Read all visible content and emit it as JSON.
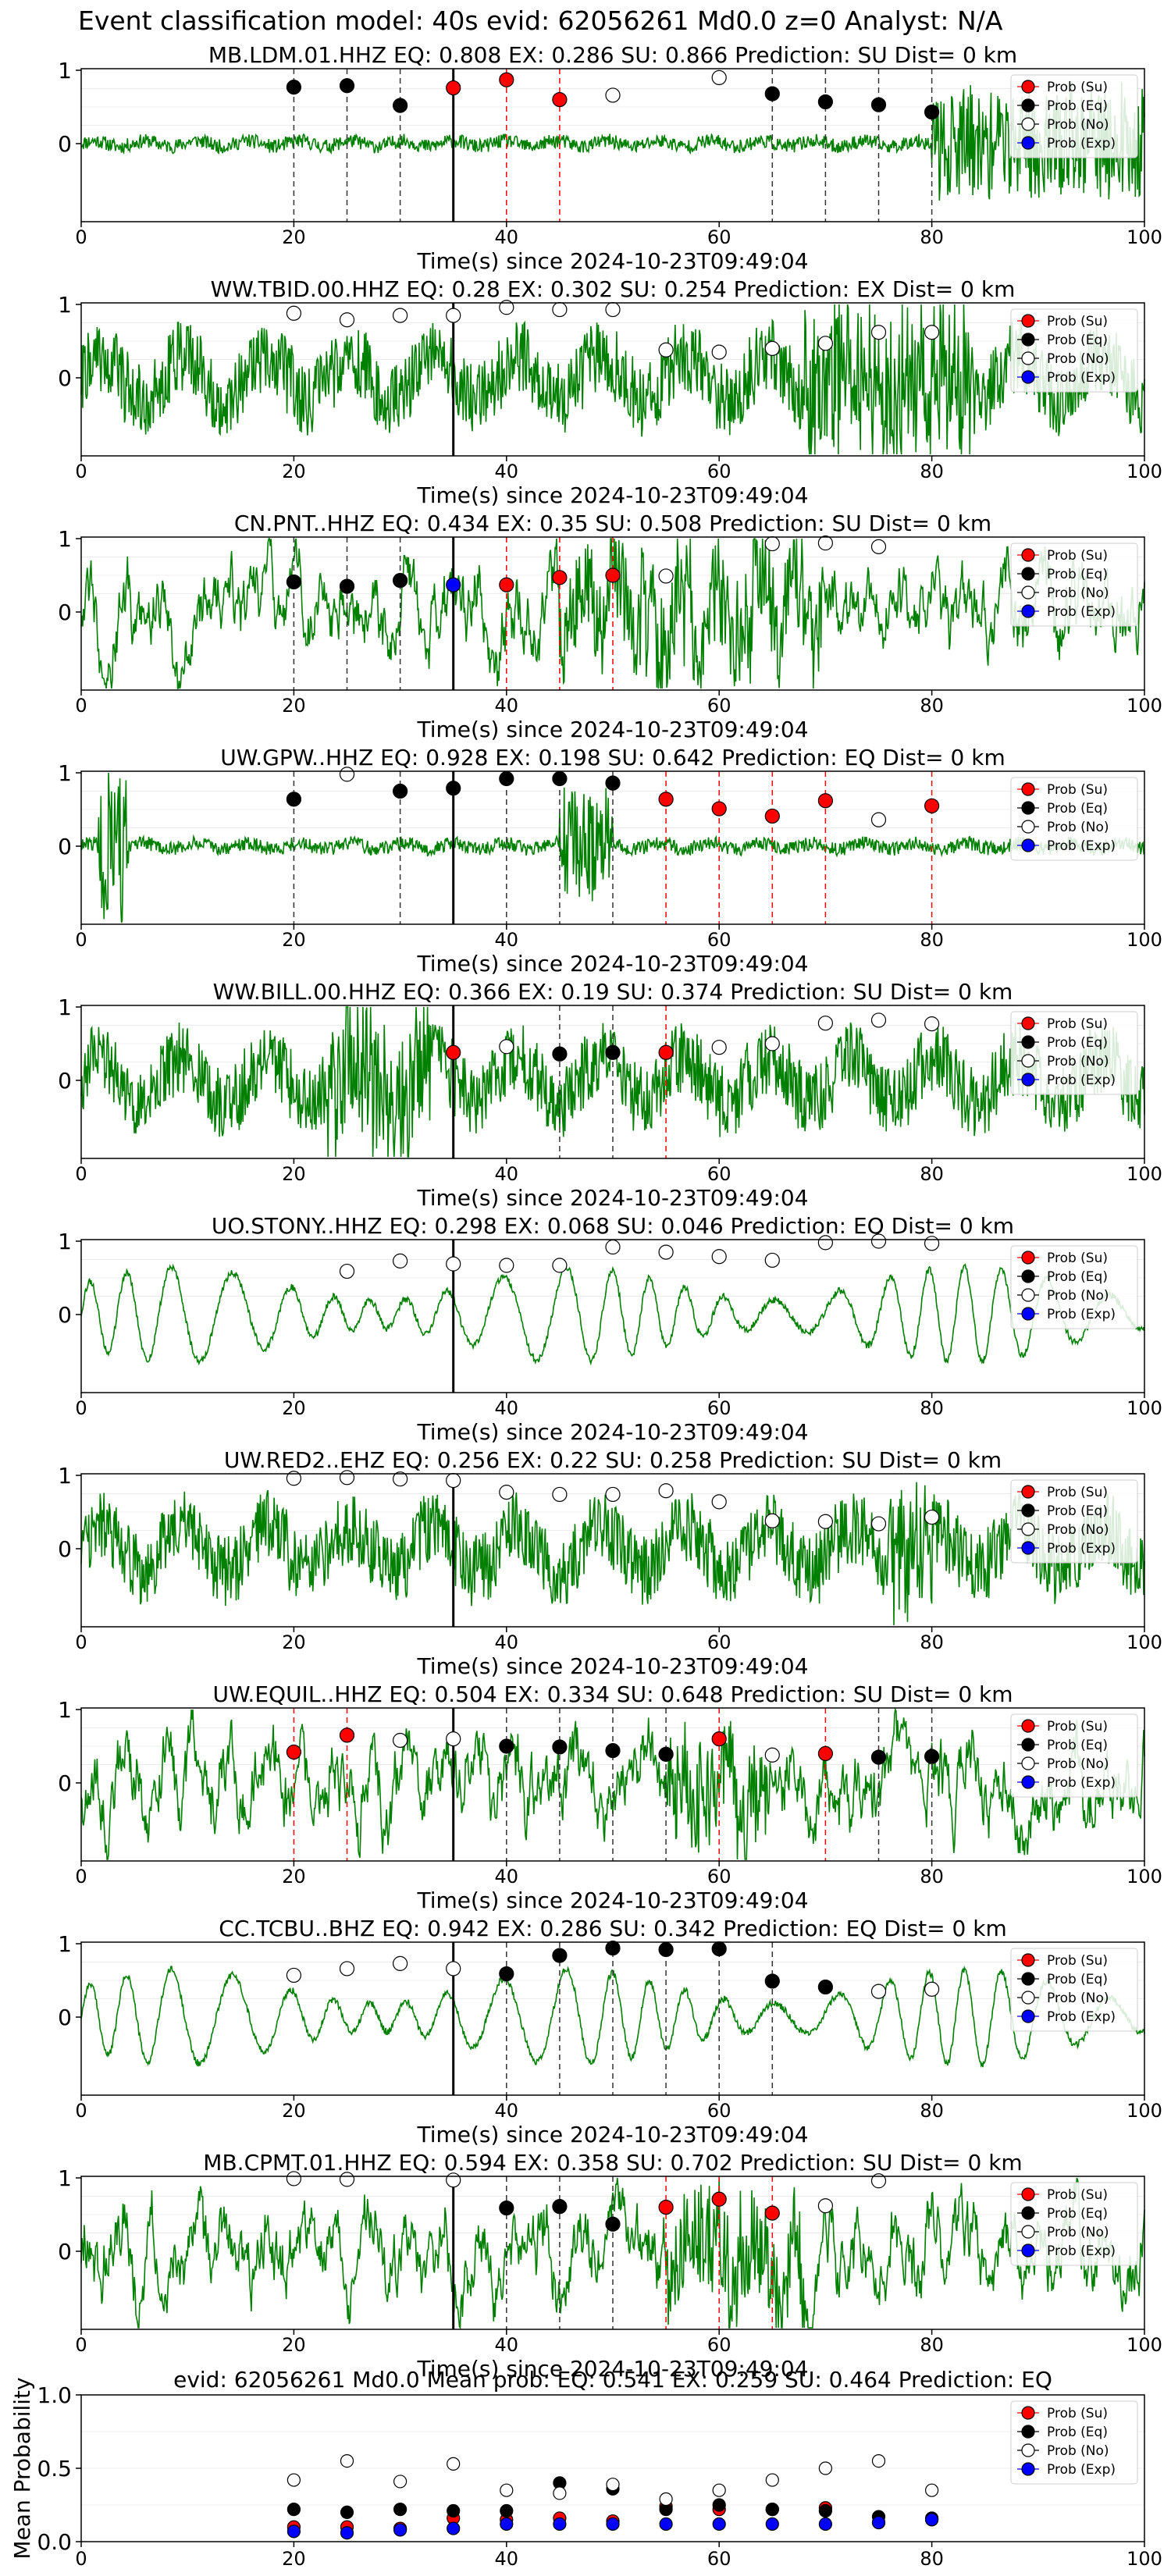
{
  "title": "Event classification model: 40s evid: 62056261 Md0.0 z=0 Analyst: N/A",
  "colors": {
    "su": "#ff0000",
    "eq": "#000000",
    "no": "#ffffff",
    "exp": "#0000ff",
    "trace": "#008000"
  },
  "legend_labels": [
    "Prob (Su)",
    "Prob (Eq)",
    "Prob (No)",
    "Prob (Exp)"
  ],
  "xlabel": "Time(s) since 2024-10-23T09:49:04",
  "chart_data": [
    {
      "type": "scatter",
      "title": "MB.LDM.01.HHZ    EQ: 0.808   EX: 0.286   SU: 0.866    Prediction: SU     Dist= 0 km",
      "xlim": [
        0,
        100
      ],
      "yticks": [
        1,
        0
      ],
      "xticks": [
        0,
        20,
        40,
        60,
        80,
        100
      ],
      "arrival": 35,
      "trace": {
        "style": "quiet",
        "seed": 11,
        "burst": [
          80,
          100,
          0.8
        ]
      },
      "points": [
        [
          20,
          "eq",
          0.77
        ],
        [
          25,
          "eq",
          0.79
        ],
        [
          30,
          "eq",
          0.52
        ],
        [
          35,
          "su",
          0.76
        ],
        [
          40,
          "su",
          0.87
        ],
        [
          45,
          "su",
          0.6
        ],
        [
          50,
          "no",
          0.66
        ],
        [
          60,
          "no",
          0.9
        ],
        [
          65,
          "eq",
          0.68
        ],
        [
          70,
          "eq",
          0.57
        ],
        [
          75,
          "eq",
          0.53
        ],
        [
          80,
          "eq",
          0.43
        ]
      ],
      "vlines": [
        [
          20,
          "eq"
        ],
        [
          25,
          "eq"
        ],
        [
          30,
          "eq"
        ],
        [
          40,
          "su"
        ],
        [
          45,
          "su"
        ],
        [
          65,
          "eq"
        ],
        [
          70,
          "eq"
        ],
        [
          75,
          "eq"
        ],
        [
          80,
          "eq"
        ]
      ]
    },
    {
      "type": "scatter",
      "title": "WW.TBID.00.HHZ   EQ: 0.28   EX: 0.302   SU: 0.254   Prediction: EX    Dist= 0 km",
      "xlim": [
        0,
        100
      ],
      "yticks": [
        1,
        0
      ],
      "xticks": [
        0,
        20,
        40,
        60,
        80,
        100
      ],
      "arrival": 35,
      "trace": {
        "style": "noisy",
        "seed": 22,
        "burst": [
          68,
          84,
          1.0
        ]
      },
      "points": [
        [
          20,
          "no",
          0.88
        ],
        [
          25,
          "no",
          0.79
        ],
        [
          30,
          "no",
          0.85
        ],
        [
          35,
          "no",
          0.85
        ],
        [
          40,
          "no",
          0.96
        ],
        [
          45,
          "no",
          0.93
        ],
        [
          50,
          "no",
          0.93
        ],
        [
          55,
          "no",
          0.38
        ],
        [
          60,
          "no",
          0.35
        ],
        [
          65,
          "no",
          0.4
        ],
        [
          70,
          "no",
          0.47
        ],
        [
          75,
          "no",
          0.62
        ],
        [
          80,
          "no",
          0.62
        ]
      ],
      "vlines": []
    },
    {
      "type": "scatter",
      "title": "CN.PNT..HHZ   EQ: 0.434   EX: 0.35   SU: 0.508   Prediction: SU    Dist= 0 km",
      "xlim": [
        0,
        100
      ],
      "yticks": [
        1,
        0
      ],
      "xticks": [
        0,
        20,
        40,
        60,
        80,
        100
      ],
      "arrival": 35,
      "trace": {
        "style": "mixed",
        "seed": 33,
        "burst": [
          45,
          70,
          0.7
        ]
      },
      "points": [
        [
          20,
          "eq",
          0.41
        ],
        [
          25,
          "eq",
          0.35
        ],
        [
          30,
          "eq",
          0.43
        ],
        [
          35,
          "exp",
          0.37
        ],
        [
          40,
          "su",
          0.37
        ],
        [
          45,
          "su",
          0.47
        ],
        [
          50,
          "su",
          0.5
        ],
        [
          55,
          "no",
          0.49
        ],
        [
          65,
          "no",
          0.93
        ],
        [
          70,
          "no",
          0.94
        ],
        [
          75,
          "no",
          0.89
        ]
      ],
      "vlines": [
        [
          20,
          "eq"
        ],
        [
          25,
          "eq"
        ],
        [
          30,
          "eq"
        ],
        [
          40,
          "su"
        ],
        [
          45,
          "su"
        ],
        [
          50,
          "su"
        ]
      ]
    },
    {
      "type": "scatter",
      "title": "UW.GPW..HHZ   EQ: 0.928   EX: 0.198   SU: 0.642    Prediction: EQ    Dist= 0 km",
      "xlim": [
        0,
        100
      ],
      "yticks": [
        1,
        0
      ],
      "xticks": [
        0,
        20,
        40,
        60,
        80,
        100
      ],
      "arrival": 35,
      "trace": {
        "style": "quiet",
        "seed": 44,
        "burst": [
          45,
          50,
          0.8
        ],
        "spike": [
          3,
          0.9
        ]
      },
      "points": [
        [
          20,
          "eq",
          0.64
        ],
        [
          25,
          "no",
          0.98
        ],
        [
          30,
          "eq",
          0.75
        ],
        [
          35,
          "eq",
          0.79
        ],
        [
          40,
          "eq",
          0.92
        ],
        [
          45,
          "eq",
          0.92
        ],
        [
          50,
          "eq",
          0.86
        ],
        [
          55,
          "su",
          0.64
        ],
        [
          60,
          "su",
          0.51
        ],
        [
          65,
          "su",
          0.41
        ],
        [
          70,
          "su",
          0.62
        ],
        [
          75,
          "no",
          0.36
        ],
        [
          80,
          "su",
          0.55
        ]
      ],
      "vlines": [
        [
          20,
          "eq"
        ],
        [
          30,
          "eq"
        ],
        [
          40,
          "eq"
        ],
        [
          45,
          "eq"
        ],
        [
          50,
          "eq"
        ],
        [
          55,
          "su"
        ],
        [
          60,
          "su"
        ],
        [
          65,
          "su"
        ],
        [
          70,
          "su"
        ],
        [
          80,
          "su"
        ]
      ]
    },
    {
      "type": "scatter",
      "title": "WW.BILL.00.HHZ   EQ: 0.366   EX: 0.19   SU: 0.374    Prediction: SU     Dist= 0 km",
      "xlim": [
        0,
        100
      ],
      "yticks": [
        1,
        0
      ],
      "xticks": [
        0,
        20,
        40,
        60,
        80,
        100
      ],
      "arrival": 35,
      "trace": {
        "style": "noisy",
        "seed": 55,
        "burst": [
          23,
          33,
          1.0
        ]
      },
      "points": [
        [
          35,
          "su",
          0.38
        ],
        [
          40,
          "no",
          0.46
        ],
        [
          45,
          "eq",
          0.36
        ],
        [
          50,
          "eq",
          0.38
        ],
        [
          55,
          "su",
          0.38
        ],
        [
          60,
          "no",
          0.45
        ],
        [
          65,
          "no",
          0.5
        ],
        [
          70,
          "no",
          0.78
        ],
        [
          75,
          "no",
          0.82
        ],
        [
          80,
          "no",
          0.77
        ]
      ],
      "vlines": [
        [
          45,
          "eq"
        ],
        [
          50,
          "eq"
        ],
        [
          55,
          "su"
        ]
      ]
    },
    {
      "type": "scatter",
      "title": "UO.STONY..HHZ   EQ: 0.298   EX: 0.068   SU: 0.046    Prediction: EQ    Dist= 0 km",
      "xlim": [
        0,
        100
      ],
      "yticks": [
        1,
        0
      ],
      "xticks": [
        0,
        20,
        40,
        60,
        80,
        100
      ],
      "arrival": 35,
      "trace": {
        "style": "wave",
        "seed": 66
      },
      "points": [
        [
          25,
          "no",
          0.59
        ],
        [
          30,
          "no",
          0.73
        ],
        [
          35,
          "no",
          0.69
        ],
        [
          40,
          "no",
          0.67
        ],
        [
          45,
          "no",
          0.67
        ],
        [
          50,
          "no",
          0.92
        ],
        [
          55,
          "no",
          0.85
        ],
        [
          60,
          "no",
          0.79
        ],
        [
          65,
          "no",
          0.74
        ],
        [
          70,
          "no",
          0.98
        ],
        [
          75,
          "no",
          1.0
        ],
        [
          80,
          "no",
          0.97
        ]
      ],
      "vlines": []
    },
    {
      "type": "scatter",
      "title": "UW.RED2..EHZ   EQ: 0.256   EX: 0.22   SU: 0.258    Prediction: SU    Dist= 0 km",
      "xlim": [
        0,
        100
      ],
      "yticks": [
        1,
        0
      ],
      "xticks": [
        0,
        20,
        40,
        60,
        80,
        100
      ],
      "arrival": 35,
      "trace": {
        "style": "noisy",
        "seed": 77,
        "burst": [
          76,
          80,
          1.0
        ]
      },
      "points": [
        [
          20,
          "no",
          0.96
        ],
        [
          25,
          "no",
          0.97
        ],
        [
          30,
          "no",
          0.95
        ],
        [
          35,
          "no",
          0.93
        ],
        [
          40,
          "no",
          0.77
        ],
        [
          45,
          "no",
          0.74
        ],
        [
          50,
          "no",
          0.74
        ],
        [
          55,
          "no",
          0.79
        ],
        [
          60,
          "no",
          0.64
        ],
        [
          65,
          "no",
          0.38
        ],
        [
          70,
          "no",
          0.37
        ],
        [
          75,
          "no",
          0.34
        ],
        [
          80,
          "no",
          0.43
        ]
      ],
      "vlines": []
    },
    {
      "type": "scatter",
      "title": "UW.EQUIL..HHZ   EQ: 0.504   EX: 0.334   SU: 0.648    Prediction: SU     Dist= 0 km",
      "xlim": [
        0,
        100
      ],
      "yticks": [
        1,
        0
      ],
      "xticks": [
        0,
        20,
        40,
        60,
        80,
        100
      ],
      "arrival": 35,
      "trace": {
        "style": "mixed",
        "seed": 88,
        "burst": [
          55,
          65,
          0.7
        ]
      },
      "points": [
        [
          20,
          "su",
          0.42
        ],
        [
          25,
          "su",
          0.65
        ],
        [
          30,
          "no",
          0.58
        ],
        [
          35,
          "no",
          0.6
        ],
        [
          40,
          "eq",
          0.5
        ],
        [
          45,
          "eq",
          0.49
        ],
        [
          50,
          "eq",
          0.44
        ],
        [
          55,
          "eq",
          0.39
        ],
        [
          60,
          "su",
          0.6
        ],
        [
          65,
          "no",
          0.38
        ],
        [
          70,
          "su",
          0.4
        ],
        [
          75,
          "eq",
          0.35
        ],
        [
          80,
          "eq",
          0.36
        ]
      ],
      "vlines": [
        [
          20,
          "su"
        ],
        [
          25,
          "su"
        ],
        [
          40,
          "eq"
        ],
        [
          45,
          "eq"
        ],
        [
          50,
          "eq"
        ],
        [
          55,
          "eq"
        ],
        [
          60,
          "su"
        ],
        [
          70,
          "su"
        ],
        [
          75,
          "eq"
        ],
        [
          80,
          "eq"
        ]
      ]
    },
    {
      "type": "scatter",
      "title": "CC.TCBU..BHZ   EQ: 0.942   EX: 0.286   SU: 0.342    Prediction: EQ    Dist= 0 km",
      "xlim": [
        0,
        100
      ],
      "yticks": [
        1,
        0
      ],
      "xticks": [
        0,
        20,
        40,
        60,
        80,
        100
      ],
      "arrival": 35,
      "trace": {
        "style": "wave",
        "seed": 99
      },
      "points": [
        [
          20,
          "no",
          0.57
        ],
        [
          25,
          "no",
          0.66
        ],
        [
          30,
          "no",
          0.73
        ],
        [
          35,
          "no",
          0.66
        ],
        [
          40,
          "eq",
          0.59
        ],
        [
          45,
          "eq",
          0.84
        ],
        [
          50,
          "eq",
          0.94
        ],
        [
          55,
          "eq",
          0.92
        ],
        [
          60,
          "eq",
          0.93
        ],
        [
          65,
          "eq",
          0.49
        ],
        [
          70,
          "eq",
          0.41
        ],
        [
          75,
          "no",
          0.35
        ],
        [
          80,
          "no",
          0.38
        ]
      ],
      "vlines": [
        [
          40,
          "eq"
        ],
        [
          45,
          "eq"
        ],
        [
          50,
          "eq"
        ],
        [
          55,
          "eq"
        ],
        [
          60,
          "eq"
        ],
        [
          65,
          "eq"
        ]
      ]
    },
    {
      "type": "scatter",
      "title": "MB.CPMT.01.HHZ   EQ: 0.594   EX: 0.358   SU: 0.702    Prediction: SU    Dist= 0 km",
      "xlim": [
        0,
        100
      ],
      "yticks": [
        1,
        0
      ],
      "xticks": [
        0,
        20,
        40,
        60,
        80,
        100
      ],
      "arrival": 35,
      "trace": {
        "style": "mixed",
        "seed": 111,
        "burst": [
          55,
          68,
          0.8
        ]
      },
      "points": [
        [
          20,
          "no",
          0.99
        ],
        [
          25,
          "no",
          0.98
        ],
        [
          35,
          "no",
          0.97
        ],
        [
          40,
          "eq",
          0.59
        ],
        [
          45,
          "eq",
          0.61
        ],
        [
          50,
          "eq",
          0.37
        ],
        [
          55,
          "su",
          0.6
        ],
        [
          60,
          "su",
          0.71
        ],
        [
          65,
          "su",
          0.52
        ],
        [
          70,
          "no",
          0.62
        ],
        [
          75,
          "no",
          0.96
        ]
      ],
      "vlines": [
        [
          40,
          "eq"
        ],
        [
          45,
          "eq"
        ],
        [
          50,
          "eq"
        ],
        [
          55,
          "su"
        ],
        [
          60,
          "su"
        ],
        [
          65,
          "su"
        ]
      ]
    },
    {
      "type": "scatter",
      "title": "evid: 62056261   Md0.0    Mean prob:    EQ: 0.541  EX: 0.259  SU: 0.464   Prediction: EQ",
      "ylabel": "Mean Probability",
      "xlim": [
        0,
        100
      ],
      "ylim": [
        0,
        1
      ],
      "yticks": [
        1.0,
        0.5,
        0.0
      ],
      "xticks": [
        0,
        20,
        40,
        60,
        80,
        100
      ],
      "series": [
        {
          "name": "Prob (Su)",
          "key": "su",
          "x": [
            20,
            25,
            30,
            35,
            40,
            45,
            50,
            55,
            60,
            65,
            70,
            75,
            80
          ],
          "y": [
            0.1,
            0.1,
            0.09,
            0.16,
            0.15,
            0.16,
            0.14,
            0.24,
            0.22,
            0.22,
            0.23,
            0.13,
            0.15
          ]
        },
        {
          "name": "Prob (Eq)",
          "key": "eq",
          "x": [
            20,
            25,
            30,
            35,
            40,
            45,
            50,
            55,
            60,
            65,
            70,
            75,
            80
          ],
          "y": [
            0.22,
            0.2,
            0.22,
            0.21,
            0.21,
            0.4,
            0.36,
            0.22,
            0.25,
            0.22,
            0.21,
            0.17,
            0.16
          ]
        },
        {
          "name": "Prob (No)",
          "key": "no",
          "x": [
            20,
            25,
            30,
            35,
            40,
            45,
            50,
            55,
            60,
            65,
            70,
            75,
            80
          ],
          "y": [
            0.42,
            0.55,
            0.41,
            0.53,
            0.35,
            0.33,
            0.39,
            0.29,
            0.35,
            0.42,
            0.5,
            0.55,
            0.35
          ]
        },
        {
          "name": "Prob (Exp)",
          "key": "exp",
          "x": [
            20,
            25,
            30,
            35,
            40,
            45,
            50,
            55,
            60,
            65,
            70,
            75,
            80
          ],
          "y": [
            0.07,
            0.06,
            0.08,
            0.09,
            0.12,
            0.12,
            0.12,
            0.12,
            0.12,
            0.12,
            0.12,
            0.13,
            0.15
          ]
        }
      ]
    }
  ]
}
